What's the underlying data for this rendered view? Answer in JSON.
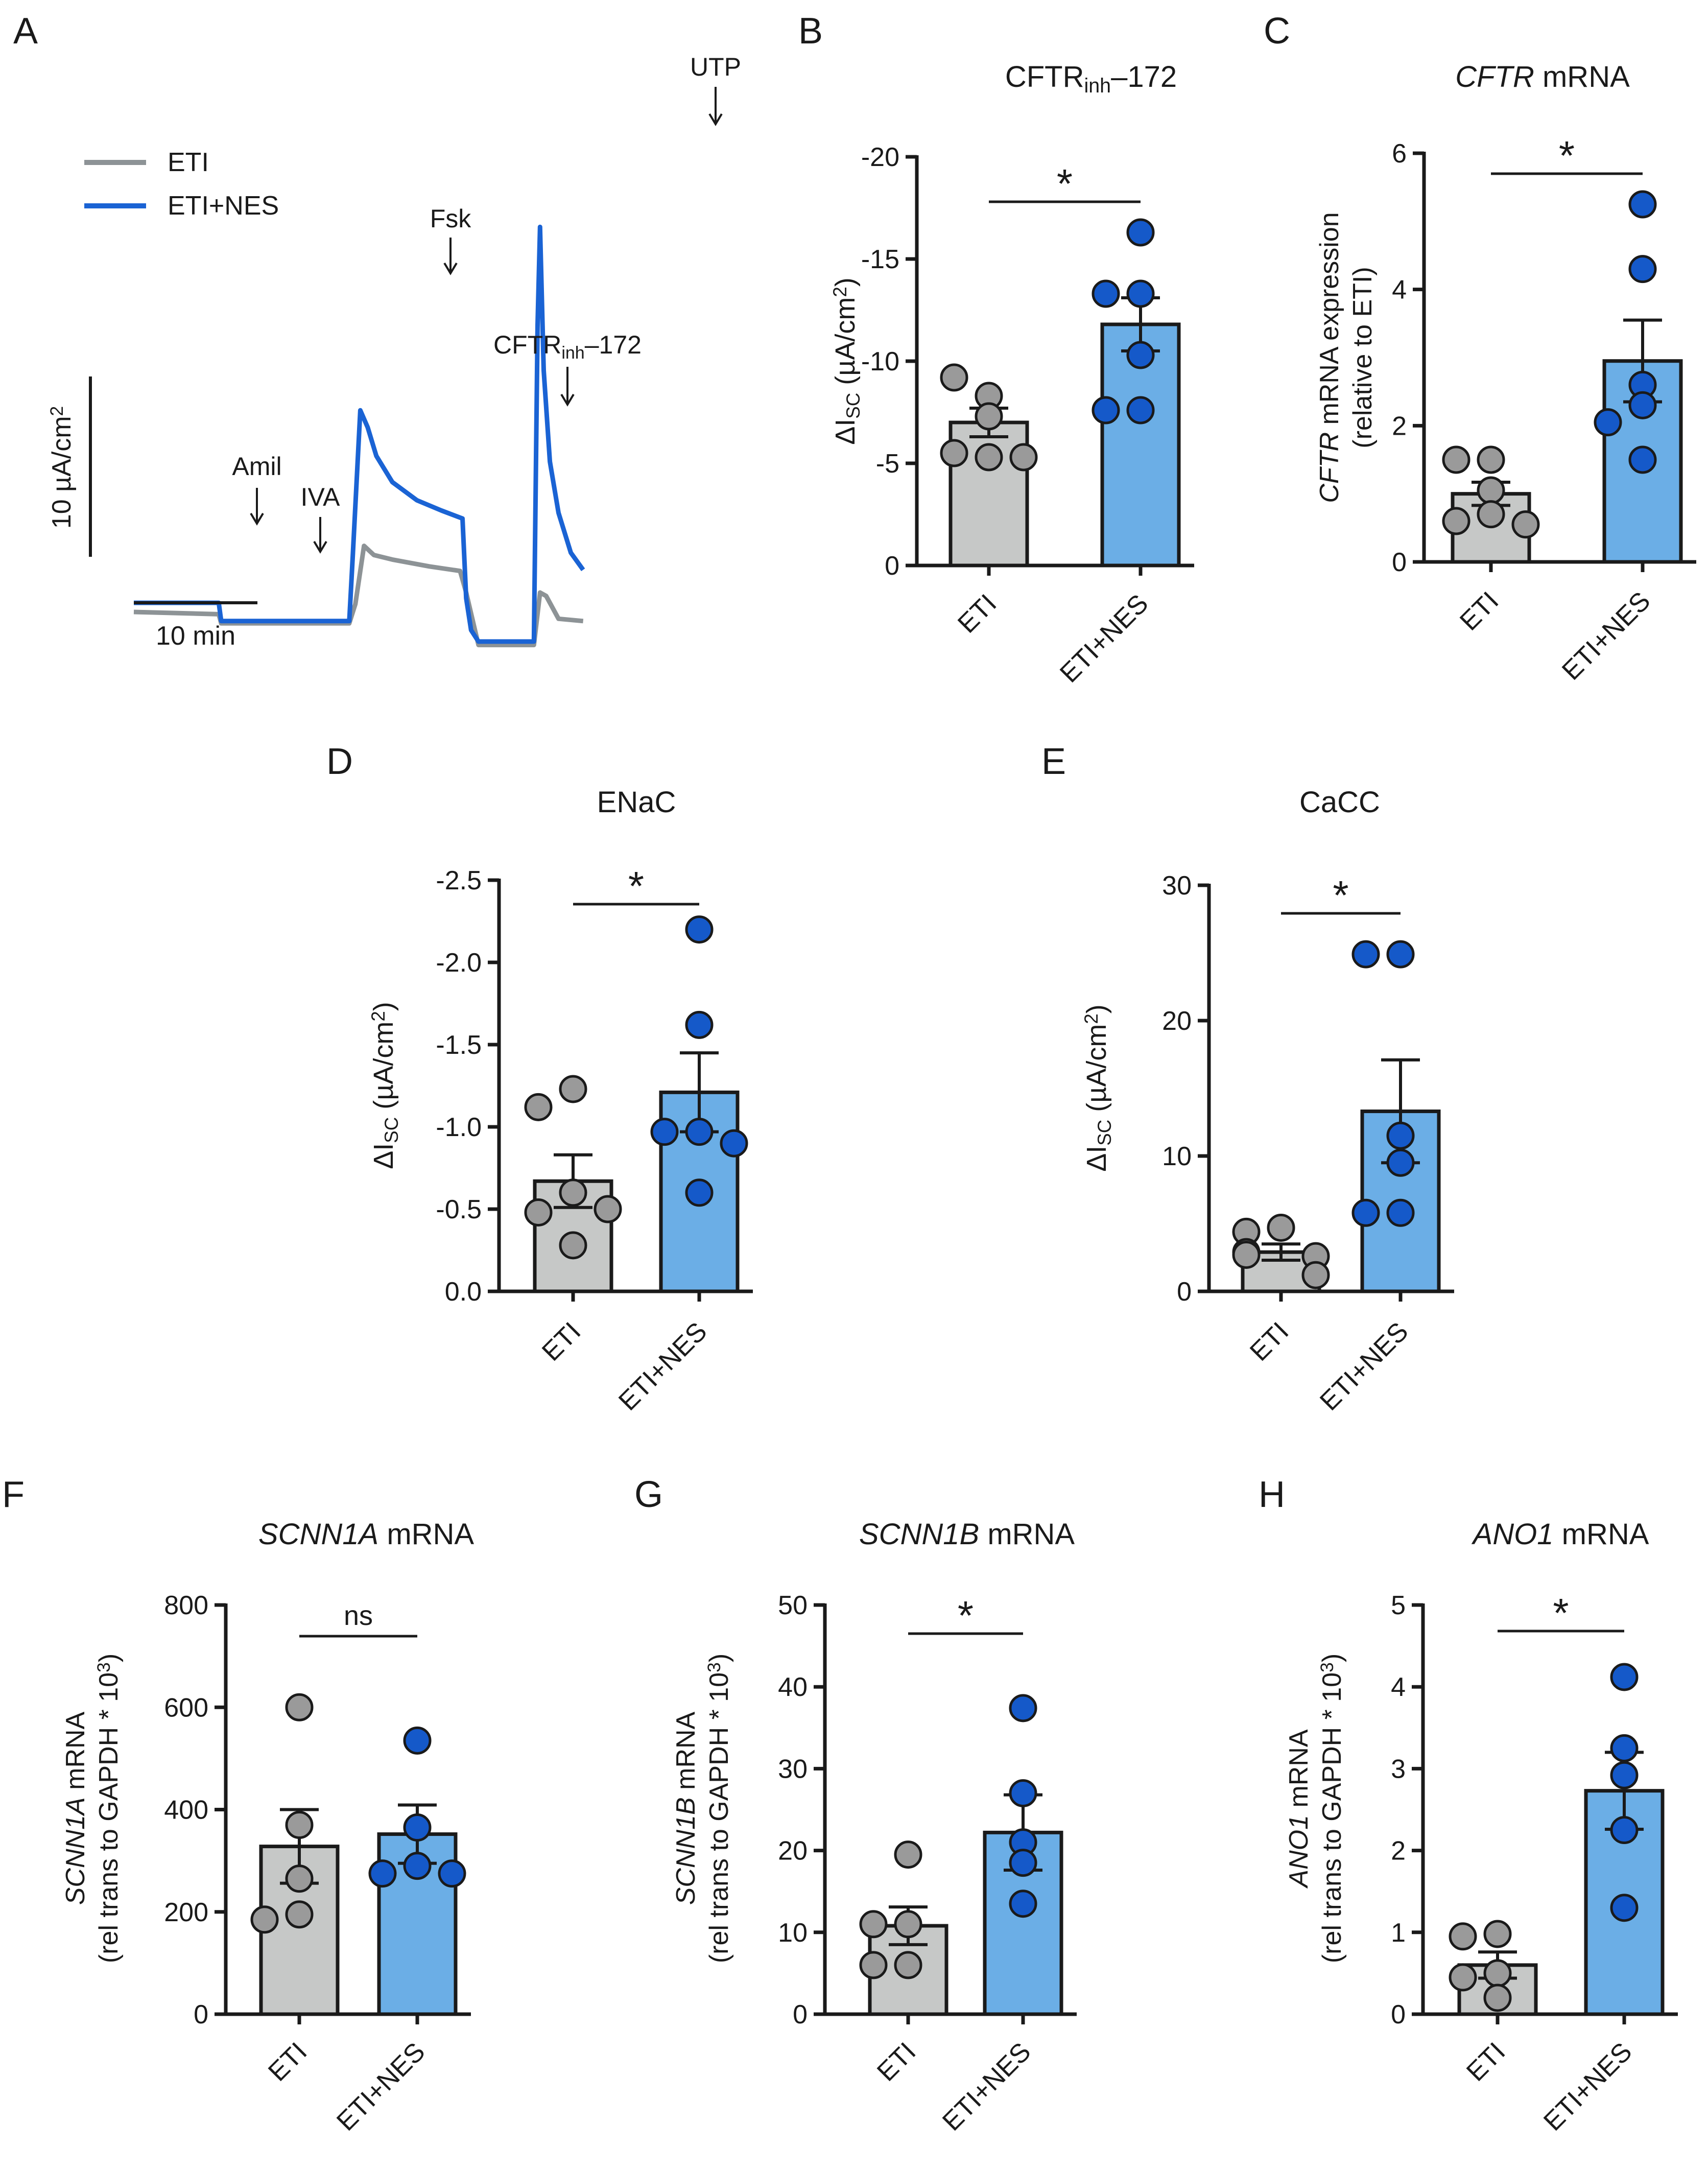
{
  "colors": {
    "eti_bar": "#c6c8c7",
    "eti_dot": "#9a9a9a",
    "nes_bar": "#6baee6",
    "nes_dot": "#1559c9",
    "eti_trace": "#8d9396",
    "nes_trace": "#1a63d4",
    "ink": "#1a1a1a"
  },
  "chart_data": [
    {
      "panel": "A",
      "type": "line",
      "legend": [
        "ETI",
        "ETI+NES"
      ],
      "scale_bar_y": "10 µA/cm²",
      "scale_bar_x": "10 min",
      "annotations": [
        "Amil",
        "IVA",
        "Fsk",
        "CFTRinh–172",
        "UTP"
      ],
      "series": [
        {
          "name": "ETI",
          "x": [
            0,
            6.9,
            7.1,
            17.5,
            18.0,
            18.7,
            19.5,
            21,
            24,
            26.5,
            27.0,
            28,
            29,
            29.5,
            32.5,
            33.0,
            33.5,
            34.5,
            36.5
          ],
          "y": [
            -5.2,
            -5.4,
            -6.2,
            -6.2,
            -4.5,
            0.6,
            -0.2,
            -0.6,
            -1.2,
            -1.6,
            -3.5,
            -8.1,
            -8.1,
            -8.1,
            -8.1,
            -3.5,
            -3.8,
            -5.8,
            -6.0
          ]
        },
        {
          "name": "ETI+NES",
          "x": [
            0,
            6.9,
            7.1,
            17.5,
            17.8,
            18.4,
            19.0,
            19.7,
            21,
            23,
            25,
            26.7,
            27.0,
            27.4,
            28,
            29,
            29.5,
            32.5,
            32.8,
            33.0,
            33.3,
            33.8,
            34.5,
            35.5,
            36.5
          ],
          "y": [
            -4.4,
            -4.4,
            -6.0,
            -6.0,
            0,
            12.5,
            11.0,
            8.5,
            6.2,
            4.6,
            3.7,
            3.0,
            -4.0,
            -6.8,
            -7.8,
            -7.8,
            -7.8,
            -7.8,
            20.0,
            28.6,
            16.0,
            8.0,
            3.5,
            0.0,
            -1.5
          ]
        }
      ]
    },
    {
      "panel": "B",
      "type": "bar",
      "title": "CFTRinh–172",
      "ylabel": "ΔISC (µA/cm²)",
      "categories": [
        "ETI",
        "ETI+NES"
      ],
      "ylim": [
        0,
        -20
      ],
      "yticks": [
        0,
        -5,
        -10,
        -15,
        -20
      ],
      "ytick_labels": [
        "0",
        "-5",
        "-10",
        "-15",
        "-20"
      ],
      "values": [
        -7.0,
        -11.8
      ],
      "sem": [
        0.7,
        1.3
      ],
      "points": [
        [
          -8.3,
          -9.2,
          -7.3,
          -5.3,
          -5.5,
          -5.3
        ],
        [
          -16.3,
          -13.3,
          -13.3,
          -10.3,
          -7.6,
          -7.6
        ]
      ],
      "significance": "*"
    },
    {
      "panel": "C",
      "type": "bar",
      "title": "CFTR mRNA",
      "ylabel": "CFTR mRNA expression (relative to ETI)",
      "categories": [
        "ETI",
        "ETI+NES"
      ],
      "ylim": [
        0,
        6
      ],
      "yticks": [
        0,
        2,
        4,
        6
      ],
      "ytick_labels": [
        "0",
        "2",
        "4",
        "6"
      ],
      "values": [
        1.0,
        2.95
      ],
      "sem": [
        0.17,
        0.6
      ],
      "points": [
        [
          1.5,
          1.5,
          1.05,
          0.7,
          0.6,
          0.55
        ],
        [
          5.25,
          4.3,
          2.6,
          2.3,
          2.05,
          1.5
        ]
      ],
      "significance": "*"
    },
    {
      "panel": "D",
      "type": "bar",
      "title": "ENaC",
      "ylabel": "ΔISC (µA/cm²)",
      "categories": [
        "ETI",
        "ETI+NES"
      ],
      "ylim": [
        0,
        -2.5
      ],
      "yticks": [
        0,
        -0.5,
        -1.0,
        -1.5,
        -2.0,
        -2.5
      ],
      "ytick_labels": [
        "0.0",
        "-0.5",
        "-1.0",
        "-1.5",
        "-2.0",
        "-2.5"
      ],
      "values": [
        -0.67,
        -1.21
      ],
      "sem": [
        0.16,
        0.24
      ],
      "points": [
        [
          -1.23,
          -1.12,
          -0.6,
          -0.48,
          -0.5,
          -0.28
        ],
        [
          -2.2,
          -1.62,
          -0.97,
          -0.97,
          -0.9,
          -0.6
        ]
      ],
      "significance": "*"
    },
    {
      "panel": "E",
      "type": "bar",
      "title": "CaCC",
      "ylabel": "ΔISC (µA/cm²)",
      "categories": [
        "ETI",
        "ETI+NES"
      ],
      "ylim": [
        0,
        30
      ],
      "yticks": [
        0,
        10,
        20,
        30
      ],
      "ytick_labels": [
        "0",
        "10",
        "20",
        "30"
      ],
      "values": [
        2.9,
        13.3
      ],
      "sem": [
        0.6,
        3.8
      ],
      "points": [
        [
          4.7,
          4.4,
          2.9,
          2.7,
          2.6,
          1.2
        ],
        [
          24.9,
          24.9,
          11.5,
          9.5,
          5.8,
          5.8
        ]
      ],
      "significance": "*"
    },
    {
      "panel": "F",
      "type": "bar",
      "title": "SCNN1A mRNA",
      "ylabel": "SCNN1A mRNA (rel trans to GAPDH * 10³)",
      "categories": [
        "ETI",
        "ETI+NES"
      ],
      "ylim": [
        0,
        800
      ],
      "yticks": [
        0,
        200,
        400,
        600,
        800
      ],
      "ytick_labels": [
        "0",
        "200",
        "400",
        "600",
        "800"
      ],
      "values": [
        328,
        352
      ],
      "sem": [
        72,
        57
      ],
      "points": [
        [
          600,
          370,
          265,
          195,
          185
        ],
        [
          535,
          365,
          290,
          275,
          275
        ]
      ],
      "significance": "ns"
    },
    {
      "panel": "G",
      "type": "bar",
      "title": "SCNN1B mRNA",
      "ylabel": "SCNN1B mRNA (rel trans to GAPDH * 10³)",
      "categories": [
        "ETI",
        "ETI+NES"
      ],
      "ylim": [
        0,
        50
      ],
      "yticks": [
        0,
        10,
        20,
        30,
        40,
        50
      ],
      "ytick_labels": [
        "0",
        "10",
        "20",
        "30",
        "40",
        "50"
      ],
      "values": [
        10.8,
        22.2
      ],
      "sem": [
        2.3,
        4.6
      ],
      "points": [
        [
          19.5,
          11.0,
          11.0,
          6.0,
          6.0
        ],
        [
          37.4,
          27.0,
          21.0,
          18.5,
          13.5
        ]
      ],
      "significance": "*"
    },
    {
      "panel": "H",
      "type": "bar",
      "title": "ANO1 mRNA",
      "ylabel": "ANO1 mRNA (rel trans to GAPDH * 10³)",
      "categories": [
        "ETI",
        "ETI+NES"
      ],
      "ylim": [
        0,
        5
      ],
      "yticks": [
        0,
        1,
        2,
        3,
        4,
        5
      ],
      "ytick_labels": [
        "0",
        "1",
        "2",
        "3",
        "4",
        "5"
      ],
      "values": [
        0.6,
        2.73
      ],
      "sem": [
        0.16,
        0.47
      ],
      "points": [
        [
          0.98,
          0.95,
          0.5,
          0.45,
          0.2
        ],
        [
          4.12,
          3.25,
          2.92,
          2.25,
          1.3
        ]
      ],
      "significance": "*"
    }
  ]
}
